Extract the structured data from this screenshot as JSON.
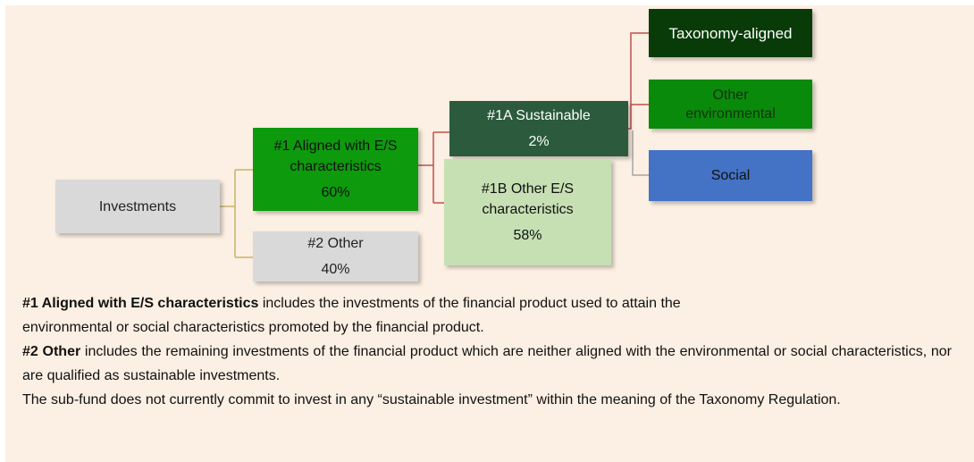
{
  "nodes": [
    {
      "label": "Investments"
    },
    {
      "label": "#1 Aligned with E/S characteristics",
      "value": "60%"
    },
    {
      "label": "#2 Other",
      "value": "40%"
    },
    {
      "label": "#1A Sustainable",
      "value": "2%"
    },
    {
      "label": "#1B Other E/S characteristics",
      "value": "58%"
    },
    {
      "label": "Taxonomy-aligned"
    },
    {
      "label": "Other environmental"
    },
    {
      "label": "Social"
    }
  ],
  "notes": [
    {
      "lead": "#1 Aligned with E/S characteristics",
      "text": " includes the investments of the financial product used to attain the environmental or social characteristics promoted by the financial product."
    },
    {
      "lead": "#2 Other",
      "text": " includes the remaining investments of the financial product which are neither aligned with the environmental or social characteristics, nor are qualified as sustainable investments."
    },
    {
      "text": "The sub-fund does not currently commit to invest in any “sustainable investment” within the meaning of the Taxonomy Regulation."
    }
  ]
}
